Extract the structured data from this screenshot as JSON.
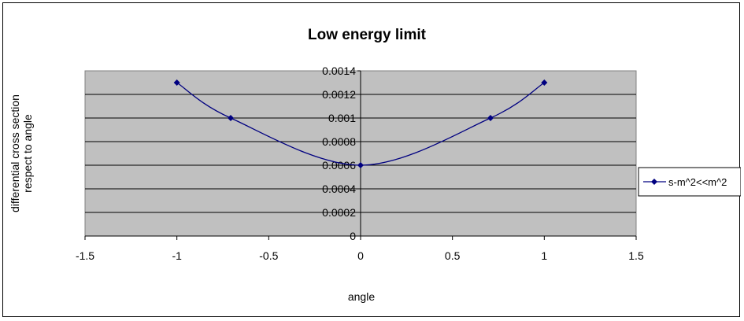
{
  "chart_data": {
    "type": "scatter",
    "title": "Low energy limit",
    "xlabel": "angle",
    "ylabel_lines": [
      "differential cross section",
      "respect to angle"
    ],
    "xlim": [
      -1.5,
      1.5
    ],
    "ylim": [
      0,
      0.0014
    ],
    "x_ticks": [
      -1.5,
      -1,
      -0.5,
      0,
      0.5,
      1,
      1.5
    ],
    "x_tick_labels": [
      "-1.5",
      "-1",
      "-0.5",
      "0",
      "0.5",
      "1",
      "1.5"
    ],
    "y_ticks": [
      0,
      0.0002,
      0.0004,
      0.0006,
      0.0008,
      0.001,
      0.0012,
      0.0014
    ],
    "y_tick_labels": [
      "0",
      "0.0002",
      "0.0004",
      "0.0006",
      "0.0008",
      "0.001",
      "0.0012",
      "0.0014"
    ],
    "grid": "horizontal",
    "plot_background": "#c0c0c0",
    "legend_position": "right",
    "series": [
      {
        "name": "s-m^2<<m^2",
        "color": "#000080",
        "marker": "diamond",
        "line": "smooth",
        "x": [
          -1,
          -0.7071,
          0,
          0.7071,
          1
        ],
        "y": [
          0.0013,
          0.001,
          0.0006,
          0.001,
          0.0013
        ]
      }
    ]
  }
}
